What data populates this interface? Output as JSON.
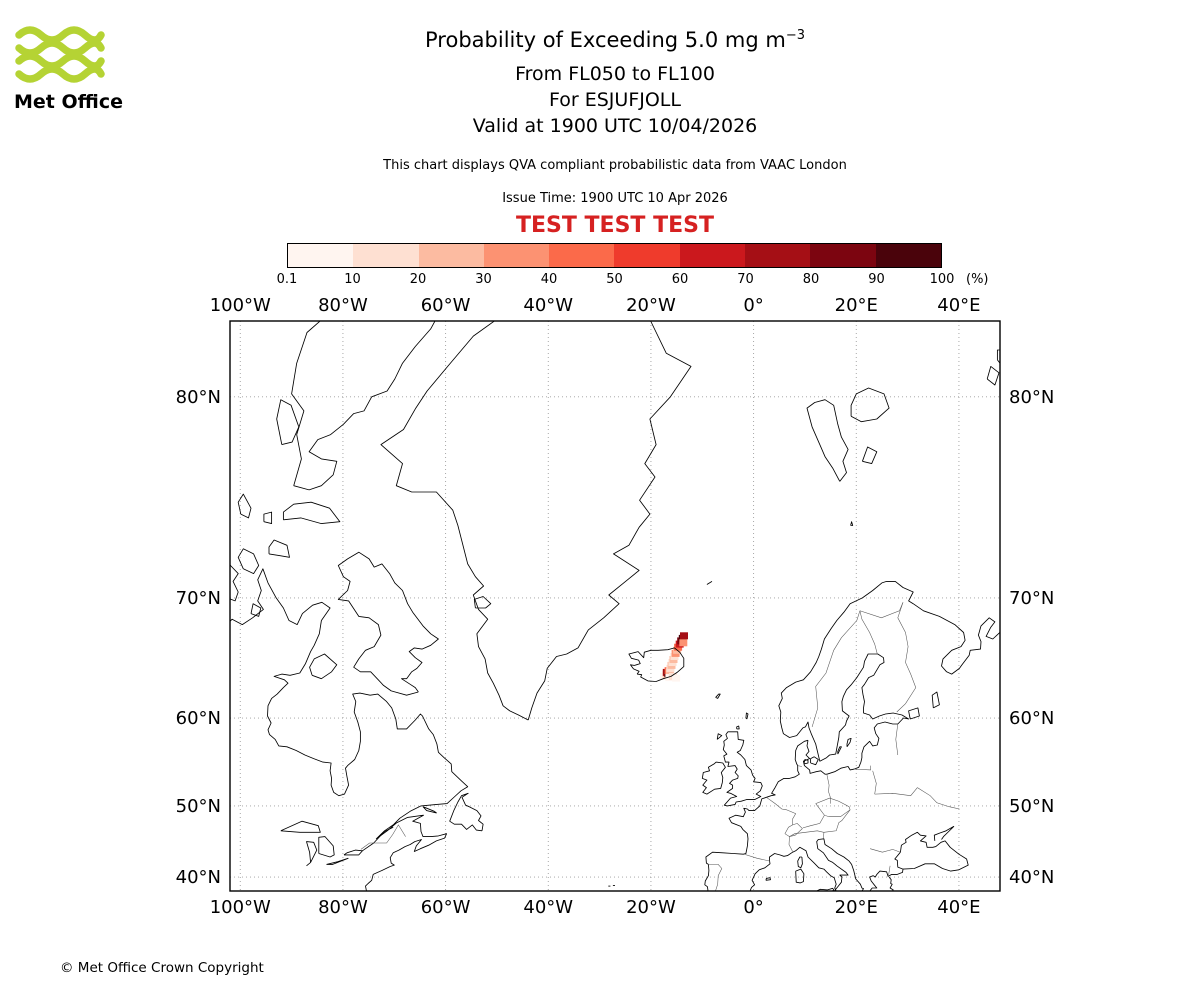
{
  "logo": {
    "text": "Met Office",
    "green": "#b5d334"
  },
  "header": {
    "title_prefix": "Probability of Exceeding 5.0 mg m",
    "title_exponent": "−3",
    "subtitle_levels": "From FL050 to FL100",
    "subtitle_volcano": "For ESJUFJOLL",
    "subtitle_valid": "Valid at 1900 UTC 10/04/2026",
    "note": "This chart displays QVA compliant probabilistic data from VAAC London",
    "issue": "Issue Time: 1900 UTC 10 Apr 2026",
    "test_banner": "TEST TEST TEST",
    "test_color": "#d62121"
  },
  "colorbar": {
    "tick_labels": [
      "0.1",
      "10",
      "20",
      "30",
      "40",
      "50",
      "60",
      "70",
      "80",
      "90",
      "100"
    ],
    "unit": "(%)",
    "colors": [
      "#fff5f0",
      "#fee0d2",
      "#fcbba1",
      "#fc9272",
      "#fb6a4a",
      "#ef3b2c",
      "#cb181d",
      "#a50f15",
      "#7c0510",
      "#4a030b"
    ]
  },
  "map": {
    "lon_labels": [
      {
        "text": "100°W",
        "lon": -100
      },
      {
        "text": "80°W",
        "lon": -80
      },
      {
        "text": "60°W",
        "lon": -60
      },
      {
        "text": "40°W",
        "lon": -40
      },
      {
        "text": "20°W",
        "lon": -20
      },
      {
        "text": "0°",
        "lon": 0
      },
      {
        "text": "20°E",
        "lon": 20
      },
      {
        "text": "40°E",
        "lon": 40
      }
    ],
    "lat_labels": [
      {
        "text": "80°N",
        "lat": 80
      },
      {
        "text": "70°N",
        "lat": 70
      },
      {
        "text": "60°N",
        "lat": 60
      },
      {
        "text": "50°N",
        "lat": 50
      },
      {
        "text": "40°N",
        "lat": 40
      }
    ],
    "plume_cells": [
      [
        -17.4,
        63.9,
        0
      ],
      [
        -17.0,
        64.1,
        1
      ],
      [
        -16.8,
        64.0,
        2
      ],
      [
        -16.9,
        64.25,
        7
      ],
      [
        -16.6,
        64.15,
        9
      ],
      [
        -16.55,
        64.4,
        4
      ],
      [
        -16.3,
        64.3,
        2
      ],
      [
        -16.2,
        64.6,
        1
      ],
      [
        -16.0,
        64.85,
        2
      ],
      [
        -15.8,
        65.1,
        1
      ],
      [
        -15.6,
        65.35,
        2
      ],
      [
        -15.4,
        65.6,
        1
      ],
      [
        -15.2,
        65.85,
        3
      ],
      [
        -14.9,
        66.1,
        2
      ],
      [
        -14.7,
        66.35,
        4
      ],
      [
        -14.4,
        66.6,
        6
      ],
      [
        -14.1,
        66.85,
        8
      ],
      [
        -13.8,
        67.05,
        9
      ],
      [
        -13.55,
        67.25,
        7
      ],
      [
        -13.7,
        66.7,
        3
      ],
      [
        -16.4,
        63.8,
        0
      ],
      [
        -15.7,
        63.9,
        1
      ],
      [
        -15.1,
        63.75,
        0
      ]
    ]
  },
  "footer": {
    "copyright": "© Met Office Crown Copyright"
  }
}
